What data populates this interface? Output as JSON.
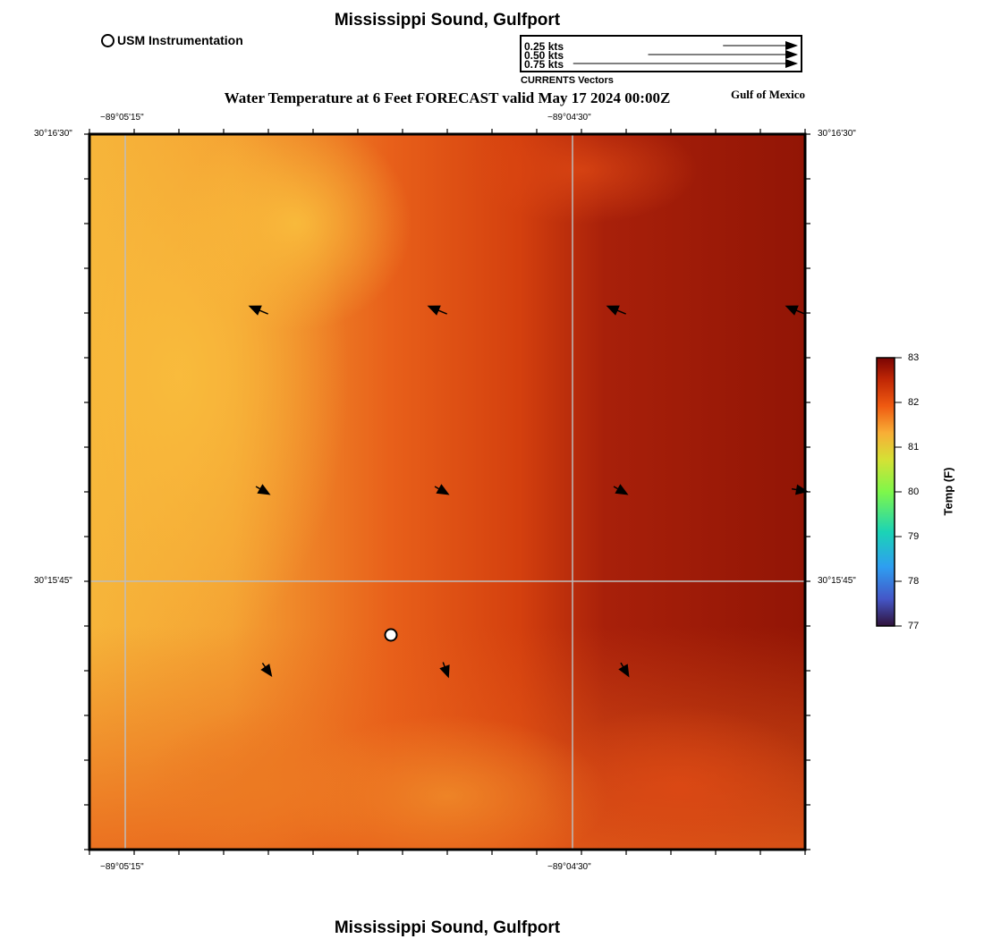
{
  "header": {
    "title": "Mississippi Sound, Gulfport",
    "subtitle": "Water Temperature at 6 Feet FORECAST valid May 17 2024 00:00Z",
    "region": "Gulf of Mexico"
  },
  "footer": {
    "title": "Mississippi Sound, Gulfport"
  },
  "legend": {
    "usm_label": "USM Instrumentation",
    "vector_scale": [
      {
        "label": "0.25 kts",
        "value": 0.25
      },
      {
        "label": "0.50 kts",
        "value": 0.5
      },
      {
        "label": "0.75 kts",
        "value": 0.75
      }
    ],
    "vector_caption": "CURRENTS Vectors"
  },
  "map": {
    "lon_labels": [
      "−89°05'15\"",
      "−89°04'30\""
    ],
    "lat_labels": [
      "30°16'30\"",
      "30°15'45\""
    ],
    "station": {
      "name": "USM Instrumentation"
    },
    "vectors": [
      {
        "dir_deg": 293,
        "speed": 0.15
      },
      {
        "dir_deg": 293,
        "speed": 0.15
      },
      {
        "dir_deg": 293,
        "speed": 0.15
      },
      {
        "dir_deg": 293,
        "speed": 0.15
      },
      {
        "dir_deg": 120,
        "speed": 0.08
      },
      {
        "dir_deg": 120,
        "speed": 0.08
      },
      {
        "dir_deg": 120,
        "speed": 0.08
      },
      {
        "dir_deg": 100,
        "speed": 0.08
      },
      {
        "dir_deg": 145,
        "speed": 0.08
      },
      {
        "dir_deg": 160,
        "speed": 0.08
      },
      {
        "dir_deg": 150,
        "speed": 0.08
      }
    ],
    "colors": {
      "warm_light": "#F6B53A",
      "warm_mid": "#E8601A",
      "warm_dark": "#9A1A06",
      "grid": "#BDBDBD"
    }
  },
  "colorbar": {
    "title": "Temp (F)",
    "min": 77,
    "max": 83,
    "ticks": [
      "83",
      "82",
      "81",
      "80",
      "79",
      "78",
      "77"
    ]
  }
}
